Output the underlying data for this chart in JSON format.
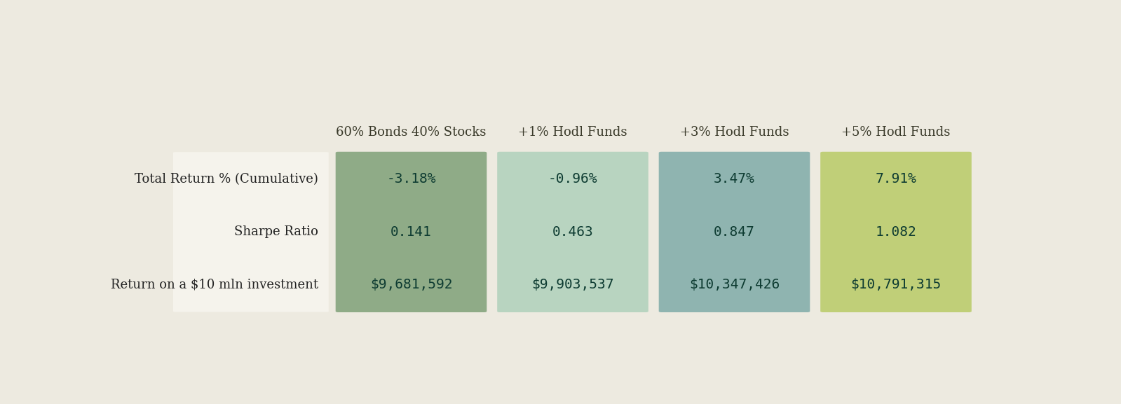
{
  "background_color": "#edeae0",
  "col_headers": [
    "60% Bonds 40% Stocks",
    "+1% Hodl Funds",
    "+3% Hodl Funds",
    "+5% Hodl Funds"
  ],
  "row_labels": [
    "Total Return % (Cumulative)",
    "Sharpe Ratio",
    "Return on a $10 mln investment"
  ],
  "cell_values": [
    [
      "-3.18%",
      "-0.96%",
      "3.47%",
      "7.91%"
    ],
    [
      "0.141",
      "0.463",
      "0.847",
      "1.082"
    ],
    [
      "$9,681,592",
      "$9,903,537",
      "$10,347,426",
      "$10,791,315"
    ]
  ],
  "col_colors": [
    "#8fab87",
    "#b8d4c0",
    "#8fb4b0",
    "#c0cf78"
  ],
  "text_color": "#0d3b31",
  "header_text_color": "#3a3a2a",
  "row_label_color": "#222222",
  "row_label_bg": "#f5f3ec",
  "cell_font_size": 14,
  "header_font_size": 13,
  "row_label_font_size": 13,
  "figsize": [
    15.99,
    5.77
  ],
  "dpi": 100
}
